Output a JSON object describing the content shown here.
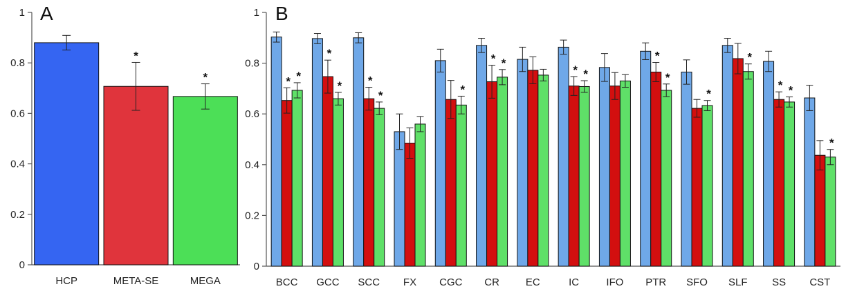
{
  "chart_data": [
    {
      "type": "bar",
      "panel_label": "A",
      "categories": [
        "HCP",
        "META-SE",
        "MEGA"
      ],
      "values": [
        0.88,
        0.707,
        0.667
      ],
      "errors": [
        0.029,
        0.095,
        0.05
      ],
      "significant": [
        false,
        true,
        true
      ],
      "colors": [
        "#3565f2",
        "#e0343c",
        "#4cdf57"
      ],
      "ylim": [
        0,
        1
      ],
      "yticks": [
        {
          "value": 0,
          "label": "0"
        },
        {
          "value": 0.2,
          "label": "0.2"
        },
        {
          "value": 0.4,
          "label": "0.4"
        },
        {
          "value": 0.6,
          "label": "0.6"
        },
        {
          "value": 0.8,
          "label": "0.8"
        },
        {
          "value": 1,
          "label": "1"
        }
      ],
      "significance_marker": "*"
    },
    {
      "type": "bar",
      "panel_label": "B",
      "categories": [
        "BCC",
        "GCC",
        "SCC",
        "FX",
        "CGC",
        "CR",
        "EC",
        "IC",
        "IFO",
        "PTR",
        "SFO",
        "SLF",
        "SS",
        "CST"
      ],
      "series_colors": [
        "#6fa8e8",
        "#d30f0f",
        "#5fe068"
      ],
      "series": [
        {
          "values": [
            0.903,
            0.897,
            0.9,
            0.53,
            0.81,
            0.87,
            0.815,
            0.863,
            0.783,
            0.847,
            0.765,
            0.87,
            0.807,
            0.663
          ],
          "errors": [
            0.02,
            0.02,
            0.02,
            0.07,
            0.045,
            0.028,
            0.048,
            0.028,
            0.055,
            0.033,
            0.048,
            0.028,
            0.04,
            0.05
          ],
          "significant": [
            false,
            false,
            false,
            false,
            false,
            false,
            false,
            false,
            false,
            false,
            false,
            false,
            false,
            false
          ]
        },
        {
          "values": [
            0.653,
            0.747,
            0.66,
            0.485,
            0.657,
            0.727,
            0.772,
            0.71,
            0.71,
            0.765,
            0.622,
            0.818,
            0.657,
            0.437
          ],
          "errors": [
            0.05,
            0.065,
            0.045,
            0.06,
            0.075,
            0.065,
            0.053,
            0.037,
            0.053,
            0.038,
            0.035,
            0.06,
            0.03,
            0.058
          ],
          "significant": [
            true,
            true,
            true,
            false,
            false,
            true,
            false,
            true,
            false,
            true,
            false,
            false,
            true,
            false
          ]
        },
        {
          "values": [
            0.693,
            0.66,
            0.622,
            0.56,
            0.635,
            0.745,
            0.753,
            0.708,
            0.73,
            0.693,
            0.633,
            0.767,
            0.647,
            0.43
          ],
          "errors": [
            0.03,
            0.025,
            0.025,
            0.03,
            0.035,
            0.03,
            0.023,
            0.023,
            0.025,
            0.025,
            0.02,
            0.03,
            0.02,
            0.03
          ],
          "significant": [
            true,
            true,
            true,
            false,
            true,
            true,
            false,
            true,
            false,
            true,
            true,
            true,
            true,
            true
          ]
        }
      ],
      "ylim": [
        0,
        1
      ],
      "yticks": [
        {
          "value": 0,
          "label": "0"
        },
        {
          "value": 0.2,
          "label": "0.2"
        },
        {
          "value": 0.4,
          "label": "0.4"
        },
        {
          "value": 0.6,
          "label": "0.6"
        },
        {
          "value": 0.8,
          "label": "0.8"
        },
        {
          "value": 1,
          "label": "1"
        }
      ],
      "significance_marker": "*"
    }
  ]
}
